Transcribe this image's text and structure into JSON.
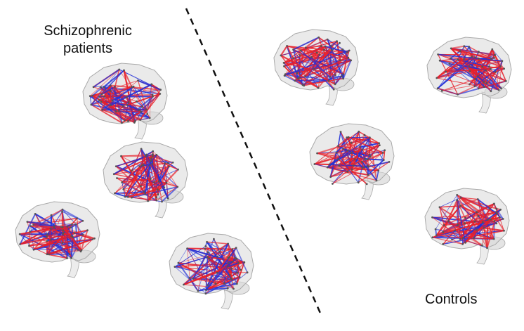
{
  "labels": {
    "patients_line1": "Schizophrenic",
    "patients_line2": "patients",
    "controls": "Controls"
  },
  "colors": {
    "edge_red": "#e8202a",
    "edge_blue": "#2230d8",
    "brain_fill": "#d9d9d9",
    "brain_outline": "#a9a9a9",
    "separator": "#111111"
  },
  "groups": [
    {
      "name_key": "patients",
      "brain_count": 4
    },
    {
      "name_key": "controls",
      "brain_count": 4
    }
  ],
  "separator_style": "dashed"
}
